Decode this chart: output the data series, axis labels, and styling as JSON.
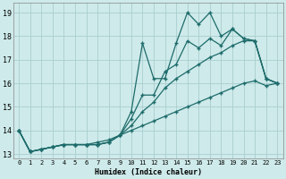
{
  "xlabel": "Humidex (Indice chaleur)",
  "xlim": [
    -0.5,
    23.5
  ],
  "ylim": [
    12.8,
    19.4
  ],
  "yticks": [
    13,
    14,
    15,
    16,
    17,
    18,
    19
  ],
  "xticks": [
    0,
    1,
    2,
    3,
    4,
    5,
    6,
    7,
    8,
    9,
    10,
    11,
    12,
    13,
    14,
    15,
    16,
    17,
    18,
    19,
    20,
    21,
    22,
    23
  ],
  "background_color": "#ceeaea",
  "grid_color": "#aacece",
  "line_color": "#1e6b6b",
  "line1": [
    14.0,
    13.1,
    13.2,
    13.3,
    13.4,
    13.4,
    13.4,
    13.4,
    13.5,
    13.8,
    14.8,
    17.7,
    16.2,
    16.2,
    17.7,
    19.0,
    18.5,
    19.0,
    18.0,
    18.3,
    17.9,
    17.8,
    16.2,
    16.0
  ],
  "line2": [
    14.0,
    13.1,
    13.2,
    13.3,
    13.4,
    13.4,
    13.4,
    13.4,
    13.5,
    13.8,
    14.5,
    15.5,
    15.5,
    16.5,
    16.8,
    17.8,
    17.5,
    17.9,
    17.6,
    18.3,
    17.9,
    17.8,
    16.2,
    16.0
  ],
  "line3": [
    14.0,
    13.1,
    13.2,
    13.3,
    13.4,
    13.4,
    13.4,
    13.4,
    13.5,
    13.8,
    14.2,
    14.8,
    15.2,
    15.8,
    16.2,
    16.5,
    16.8,
    17.1,
    17.3,
    17.6,
    17.8,
    17.8,
    16.2,
    16.0
  ],
  "line4": [
    14.0,
    13.1,
    13.2,
    13.3,
    13.4,
    13.4,
    13.4,
    13.5,
    13.6,
    13.8,
    14.0,
    14.2,
    14.4,
    14.6,
    14.8,
    15.0,
    15.2,
    15.4,
    15.6,
    15.8,
    16.0,
    16.1,
    15.9,
    16.0
  ]
}
